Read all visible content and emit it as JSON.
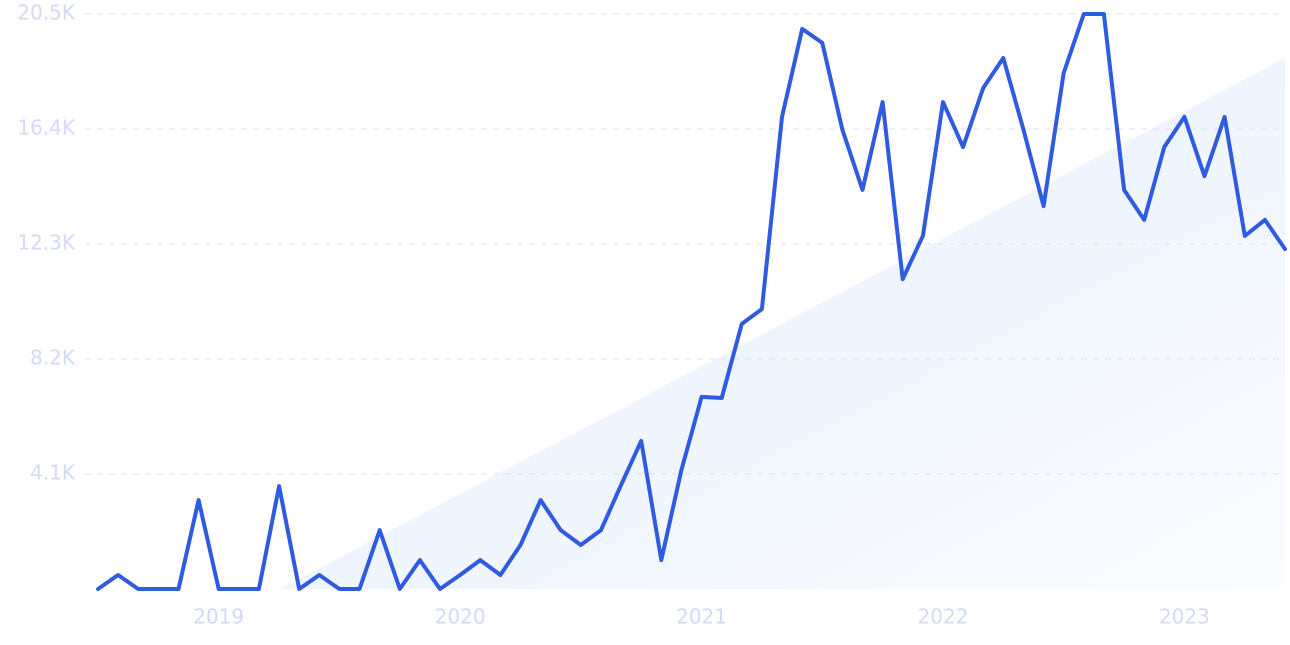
{
  "chart_data": {
    "type": "line",
    "categories": [
      null,
      null,
      null,
      null,
      null,
      null,
      "2019",
      null,
      null,
      null,
      null,
      null,
      null,
      null,
      null,
      null,
      null,
      null,
      "2020",
      null,
      null,
      null,
      null,
      null,
      null,
      null,
      null,
      null,
      null,
      null,
      "2021",
      null,
      null,
      null,
      null,
      null,
      null,
      null,
      null,
      null,
      null,
      null,
      "2022",
      null,
      null,
      null,
      null,
      null,
      null,
      null,
      null,
      null,
      null,
      null,
      "2023",
      null,
      null,
      null,
      null,
      null
    ],
    "values": [
      0,
      500,
      0,
      0,
      0,
      3170,
      0,
      0,
      0,
      3670,
      0,
      500,
      0,
      0,
      2100,
      0,
      1030,
      0,
      500,
      1030,
      500,
      1570,
      3170,
      2100,
      1570,
      2100,
      3710,
      5280,
      1030,
      4240,
      6850,
      6810,
      9450,
      9980,
      16830,
      19970,
      19470,
      16370,
      14230,
      17360,
      11050,
      12590,
      17360,
      15760,
      17860,
      18930,
      16370,
      13650,
      18400,
      20500,
      20500,
      14230,
      13160,
      15760,
      16830,
      14720,
      16830,
      12590,
      13160,
      12120
    ],
    "color": "#2f5be0",
    "ylim": [
      0,
      20500
    ],
    "yticks": [
      {
        "value": 4100,
        "label": "4.1K"
      },
      {
        "value": 8200,
        "label": "8.2K"
      },
      {
        "value": 12300,
        "label": "12.3K"
      },
      {
        "value": 16400,
        "label": "16.4K"
      },
      {
        "value": 20500,
        "label": "20.5K"
      }
    ],
    "grid": true
  }
}
